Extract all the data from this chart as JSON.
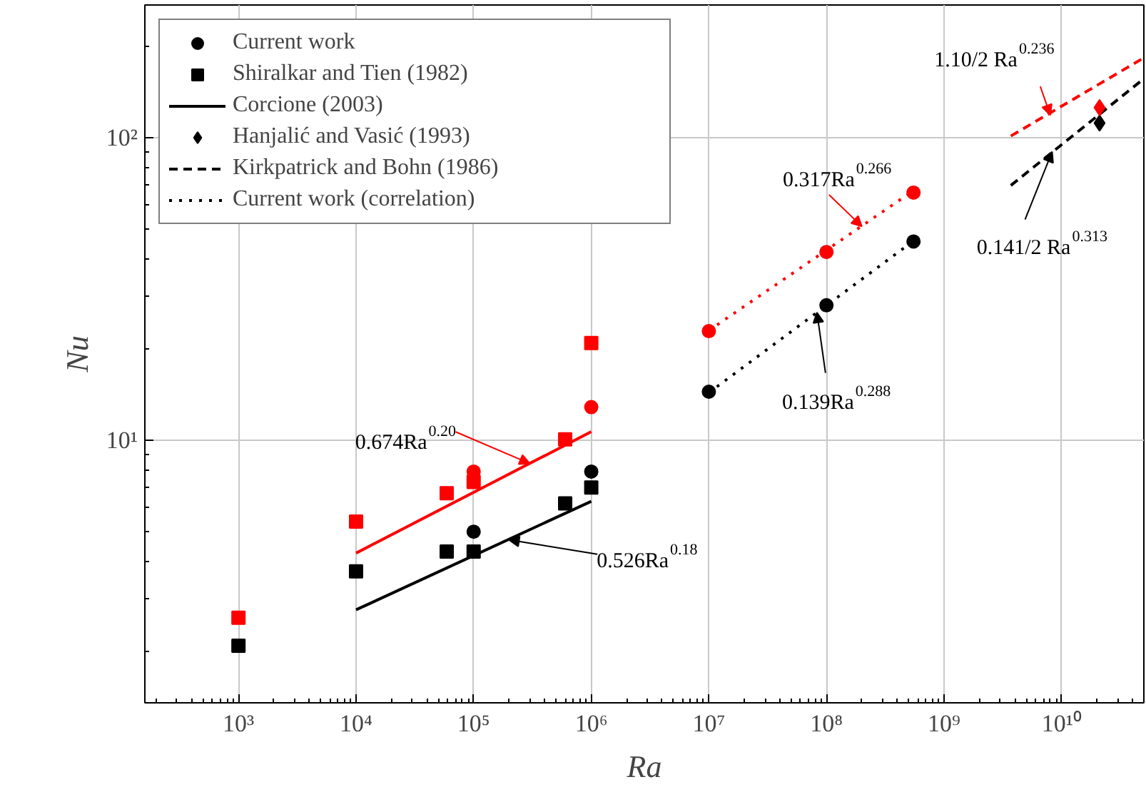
{
  "chart_data": {
    "type": "scatter",
    "xlabel": "Ra",
    "ylabel": "Nu",
    "log": "xy",
    "grid": true,
    "legend": "top left",
    "xlim": [
      160,
      50000000000
    ],
    "ylim": [
      1.36,
      275
    ],
    "xticks": [
      {
        "value": 1000,
        "label": "10³"
      },
      {
        "value": 10000,
        "label": "10⁴"
      },
      {
        "value": 100000,
        "label": "10⁵"
      },
      {
        "value": 1000000,
        "label": "10⁶"
      },
      {
        "value": 10000000,
        "label": "10⁷"
      },
      {
        "value": 100000000,
        "label": "10⁸"
      },
      {
        "value": 1000000000,
        "label": "10⁹"
      },
      {
        "value": 10000000000,
        "label": "10¹⁰"
      }
    ],
    "yticks": [
      {
        "value": 10,
        "label": "10¹"
      },
      {
        "value": 100,
        "label": "10²"
      }
    ],
    "series": [
      {
        "name": "Current work",
        "marker": "circle",
        "color": "#000000",
        "x": [
          100000,
          1000000,
          10000000,
          100000000,
          550000000
        ],
        "values": [
          5.0,
          7.9,
          14.5,
          28,
          45.5
        ]
      },
      {
        "name": "Shiralkar and Tien (1982)",
        "marker": "square",
        "color": "#000000",
        "x": [
          1000,
          10000,
          59000,
          100000,
          600000,
          1000000
        ],
        "values": [
          2.1,
          3.7,
          4.3,
          4.3,
          6.2,
          7.0
        ]
      },
      {
        "name": "Corcione (2003)",
        "type": "line",
        "line_style": "solid",
        "color": "#000000",
        "x": [
          10000,
          1000000
        ],
        "values": [
          2.76,
          6.3
        ]
      },
      {
        "name": "Hanjalić and Vasić (1993)",
        "marker": "diamond",
        "color": "#000000",
        "x": [
          21000000000
        ],
        "values": [
          112
        ]
      },
      {
        "name": "Kirkpatrick and Bohn (1986)",
        "type": "line",
        "line_style": "dashed",
        "color": "#000000",
        "x": [
          3700000000,
          50000000000
        ],
        "values": [
          69.7,
          157
        ]
      },
      {
        "name": "Current work (correlation)",
        "type": "line",
        "line_style": "dotted",
        "color": "#000000",
        "x": [
          10000000,
          550000000
        ],
        "values": [
          14.4,
          45.7
        ]
      },
      {
        "marker": "circle",
        "color": "#ff0000",
        "x": [
          100000,
          1000000,
          10000000,
          100000000,
          550000000
        ],
        "values": [
          7.9,
          12.9,
          23,
          42,
          66
        ]
      },
      {
        "marker": "square",
        "color": "#ff0000",
        "x": [
          1000,
          10000,
          59000,
          100000,
          600000,
          1000000
        ],
        "values": [
          2.6,
          5.4,
          6.7,
          7.3,
          10.1,
          21
        ]
      },
      {
        "type": "line",
        "line_style": "solid",
        "color": "#ff0000",
        "x": [
          10000,
          1000000
        ],
        "values": [
          4.25,
          10.7
        ]
      },
      {
        "marker": "diamond",
        "color": "#ff0000",
        "x": [
          21000000000
        ],
        "values": [
          126
        ]
      },
      {
        "type": "line",
        "line_style": "dashed",
        "color": "#ff0000",
        "x": [
          3700000000,
          50000000000
        ],
        "values": [
          101.5,
          184
        ]
      },
      {
        "type": "line",
        "line_style": "dotted",
        "color": "#ff0000",
        "x": [
          10000000,
          550000000
        ],
        "values": [
          23.1,
          67
        ]
      }
    ],
    "annotations": [
      {
        "text": "0.674Ra$^{0.20}$",
        "x": 300000,
        "y": 8.4
      },
      {
        "text": "0.526Ra$^{0.18}$",
        "x": 200000,
        "y": 4.7
      },
      {
        "text": "0.317Ra$^{0.266}$",
        "x": 200000000,
        "y": 51
      },
      {
        "text": "0.139Ra$^{0.288}$",
        "x": 83000000,
        "y": 26.5
      },
      {
        "text": "1.10/2 Ra$^{0.236}$",
        "x": 8000000000,
        "y": 119
      },
      {
        "text": "0.141/2 Ra$^{0.313}$",
        "x": 8300000000,
        "y": 90
      }
    ]
  }
}
